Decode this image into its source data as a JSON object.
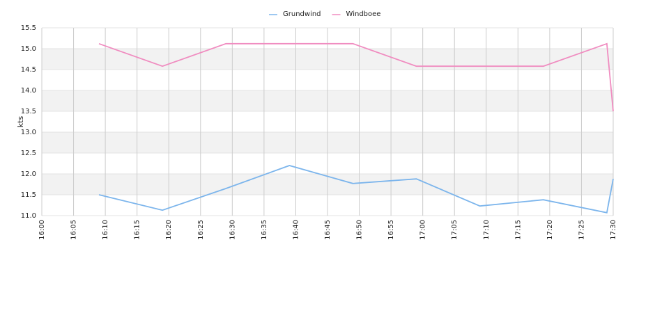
{
  "chart_data": {
    "type": "line",
    "y_label": "kts",
    "x": [
      "16:09",
      "16:19",
      "16:29",
      "16:39",
      "16:49",
      "16:59",
      "17:09",
      "17:19",
      "17:29",
      "17:30"
    ],
    "series": [
      {
        "name": "Grundwind",
        "color": "#7cb5ec",
        "values": [
          11.5,
          11.13,
          11.65,
          12.2,
          11.77,
          11.88,
          11.23,
          11.38,
          11.07,
          11.88
        ]
      },
      {
        "name": "Windboee",
        "color": "#f08cc0",
        "values": [
          15.12,
          14.58,
          15.12,
          15.12,
          15.12,
          14.58,
          14.58,
          14.58,
          15.12,
          13.5
        ]
      }
    ],
    "xlim": [
      "16:00",
      "17:30"
    ],
    "xticks": [
      "16:00",
      "16:05",
      "16:10",
      "16:15",
      "16:20",
      "16:25",
      "16:30",
      "16:35",
      "16:40",
      "16:45",
      "16:50",
      "16:55",
      "17:00",
      "17:05",
      "17:10",
      "17:15",
      "17:20",
      "17:25",
      "17:30"
    ],
    "ylim": [
      11,
      15.5
    ],
    "yticks": [
      {
        "value": 11,
        "label": "11.0"
      },
      11.5,
      {
        "value": 12,
        "label": "12.0"
      },
      12.5,
      {
        "value": 13,
        "label": "13.0"
      },
      13.5,
      {
        "value": 14,
        "label": "14.0"
      },
      14.5,
      {
        "value": 15,
        "label": "15.0"
      },
      15.5
    ],
    "grid": true,
    "legend": "top"
  }
}
